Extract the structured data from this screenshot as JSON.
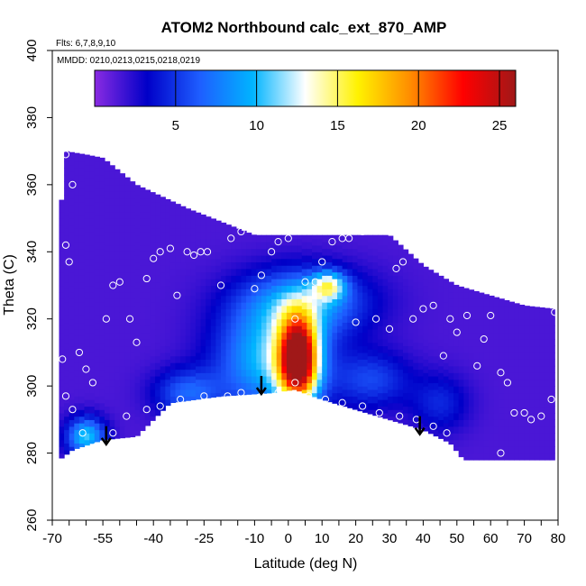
{
  "chart_data": {
    "type": "heatmap",
    "title": "ATOM2 Northbound calc_ext_870_AMP",
    "flights_label": "Flts: 6,7,8,9,10",
    "dates_label": "MMDD: 0210,0213,0215,0218,0219",
    "xlabel": "Latitude (deg N)",
    "ylabel": "Theta (C)",
    "xlim": [
      -70,
      80
    ],
    "ylim": [
      260,
      400
    ],
    "x_ticks": [
      -70,
      -55,
      -40,
      -25,
      -10,
      0,
      10,
      20,
      30,
      40,
      50,
      60,
      70,
      80
    ],
    "x_minor_ticks": [
      -65,
      -60,
      -50,
      -45,
      -35,
      -30,
      -20,
      -15,
      -5,
      5,
      15,
      25,
      35,
      45,
      55,
      65,
      75
    ],
    "y_ticks": [
      260,
      280,
      300,
      320,
      340,
      360,
      380,
      400
    ],
    "colorbar": {
      "range": [
        0,
        26
      ],
      "ticks": [
        5,
        10,
        15,
        20,
        25
      ],
      "colors": [
        "#8a2be2",
        "#0000c8",
        "#1e5eff",
        "#00b4ff",
        "#ffffff",
        "#fff200",
        "#ff8c00",
        "#ff0000",
        "#a01818"
      ]
    },
    "tops": [
      [
        -68,
        342
      ],
      [
        -67,
        360
      ],
      [
        -66,
        370
      ],
      [
        -60,
        369
      ],
      [
        -55,
        368
      ],
      [
        -45,
        360
      ],
      [
        -30,
        353
      ],
      [
        -20,
        349
      ],
      [
        -10,
        345
      ],
      [
        0,
        345
      ],
      [
        10,
        345
      ],
      [
        20,
        345
      ],
      [
        30,
        345
      ],
      [
        40,
        336
      ],
      [
        50,
        330
      ],
      [
        60,
        327
      ],
      [
        70,
        324
      ],
      [
        79,
        323
      ]
    ],
    "bottoms": [
      [
        -68,
        278
      ],
      [
        -64,
        281
      ],
      [
        -55,
        284
      ],
      [
        -45,
        285
      ],
      [
        -35,
        295
      ],
      [
        -20,
        297
      ],
      [
        -5,
        298
      ],
      [
        2,
        299
      ],
      [
        10,
        296
      ],
      [
        20,
        293
      ],
      [
        30,
        290
      ],
      [
        40,
        287
      ],
      [
        48,
        283
      ],
      [
        52,
        278
      ],
      [
        80,
        278
      ]
    ],
    "field_base": 1.5,
    "features": [
      {
        "x": 3,
        "y": 308,
        "sx": 4,
        "sy": 9,
        "amp": 24
      },
      {
        "x": -5,
        "y": 308,
        "sx": 11,
        "sy": 11,
        "amp": 9
      },
      {
        "x": 5,
        "y": 325,
        "sx": 13,
        "sy": 7,
        "amp": 7
      },
      {
        "x": 12,
        "y": 330,
        "sx": 3.5,
        "sy": 3,
        "amp": 9
      },
      {
        "x": -30,
        "y": 298,
        "sx": 7,
        "sy": 5,
        "amp": 5
      },
      {
        "x": -60,
        "y": 285,
        "sx": 4,
        "sy": 4,
        "amp": 9
      },
      {
        "x": 25,
        "y": 302,
        "sx": 8,
        "sy": 6,
        "amp": 4
      },
      {
        "x": 45,
        "y": 295,
        "sx": 6,
        "sy": 6,
        "amp": 3
      }
    ],
    "sample_points": [
      [
        -66,
        369
      ],
      [
        -64,
        360
      ],
      [
        -66,
        342
      ],
      [
        -65,
        337
      ],
      [
        -62,
        310
      ],
      [
        -60,
        305
      ],
      [
        -58,
        301
      ],
      [
        -54,
        320
      ],
      [
        -52,
        330
      ],
      [
        -50,
        331
      ],
      [
        -47,
        320
      ],
      [
        -45,
        313
      ],
      [
        -42,
        332
      ],
      [
        -40,
        338
      ],
      [
        -38,
        340
      ],
      [
        -35,
        341
      ],
      [
        -33,
        327
      ],
      [
        -30,
        340
      ],
      [
        -28,
        339
      ],
      [
        -26,
        340
      ],
      [
        -24,
        340
      ],
      [
        -20,
        330
      ],
      [
        -17,
        344
      ],
      [
        -14,
        346
      ],
      [
        -10,
        329
      ],
      [
        -8,
        333
      ],
      [
        -5,
        340
      ],
      [
        -3,
        343
      ],
      [
        0,
        344
      ],
      [
        2,
        320
      ],
      [
        5,
        331
      ],
      [
        8,
        331
      ],
      [
        10,
        337
      ],
      [
        13,
        343
      ],
      [
        16,
        344
      ],
      [
        18,
        344
      ],
      [
        20,
        319
      ],
      [
        22,
        346
      ],
      [
        26,
        320
      ],
      [
        30,
        317
      ],
      [
        32,
        335
      ],
      [
        34,
        337
      ],
      [
        37,
        320
      ],
      [
        40,
        323
      ],
      [
        43,
        324
      ],
      [
        46,
        309
      ],
      [
        48,
        320
      ],
      [
        50,
        316
      ],
      [
        53,
        321
      ],
      [
        56,
        306
      ],
      [
        58,
        314
      ],
      [
        60,
        321
      ],
      [
        63,
        304
      ],
      [
        65,
        301
      ],
      [
        67,
        292
      ],
      [
        70,
        292
      ],
      [
        72,
        290
      ],
      [
        75,
        291
      ],
      [
        78,
        296
      ],
      [
        79,
        322
      ],
      [
        -67,
        308
      ],
      [
        -66,
        297
      ],
      [
        -64,
        293
      ],
      [
        -61,
        286
      ],
      [
        -57,
        282
      ],
      [
        -52,
        286
      ],
      [
        -48,
        291
      ],
      [
        -42,
        293
      ],
      [
        -38,
        294
      ],
      [
        -32,
        296
      ],
      [
        -25,
        297
      ],
      [
        -18,
        297
      ],
      [
        -14,
        298
      ],
      [
        -8,
        297
      ],
      [
        -3,
        298
      ],
      [
        2,
        301
      ],
      [
        6,
        297
      ],
      [
        11,
        296
      ],
      [
        16,
        295
      ],
      [
        22,
        294
      ],
      [
        27,
        292
      ],
      [
        33,
        291
      ],
      [
        38,
        290
      ],
      [
        43,
        288
      ],
      [
        47,
        286
      ],
      [
        63,
        280
      ]
    ],
    "arrows": [
      [
        -54,
        288
      ],
      [
        -8,
        303
      ],
      [
        39,
        291
      ]
    ]
  }
}
